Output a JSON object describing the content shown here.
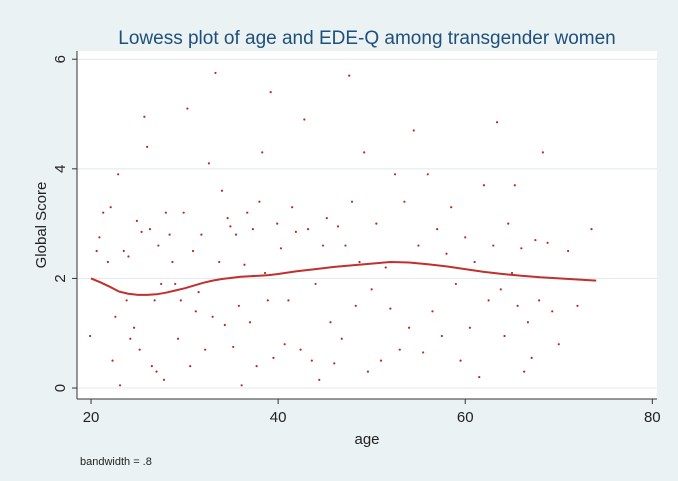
{
  "chart_data": {
    "type": "scatter",
    "title": "Lowess plot of age and EDE-Q among transgender women",
    "xlabel": "age",
    "ylabel": "Global Score",
    "xlim": [
      18.5,
      80.5
    ],
    "ylim": [
      -0.2,
      6.15
    ],
    "xticks": [
      20,
      40,
      60,
      80
    ],
    "yticks": [
      0,
      2,
      4,
      6
    ],
    "x_tick_labels": [
      "20",
      "40",
      "60",
      "80"
    ],
    "y_tick_labels": [
      "0",
      "2",
      "4",
      "6"
    ],
    "grid": "horizontal",
    "footnote": "bandwidth = .8",
    "colors": {
      "points": "#b52b2b",
      "line": "#c0302e",
      "title": "#1f4f7a",
      "background": "#eaf2f3",
      "plot": "#ffffff"
    },
    "series": [
      {
        "type": "scatter",
        "points": [
          [
            19.9,
            0.95
          ],
          [
            20.6,
            2.5
          ],
          [
            20.9,
            2.75
          ],
          [
            21.3,
            3.2
          ],
          [
            21.8,
            2.3
          ],
          [
            22.1,
            3.3
          ],
          [
            22.3,
            0.5
          ],
          [
            22.6,
            1.3
          ],
          [
            22.9,
            3.9
          ],
          [
            23.1,
            0.05
          ],
          [
            23.5,
            2.5
          ],
          [
            23.8,
            1.6
          ],
          [
            24.0,
            2.4
          ],
          [
            24.2,
            0.9
          ],
          [
            24.6,
            1.1
          ],
          [
            24.9,
            3.05
          ],
          [
            25.2,
            0.7
          ],
          [
            25.4,
            2.85
          ],
          [
            25.7,
            4.95
          ],
          [
            26.0,
            4.4
          ],
          [
            26.3,
            2.9
          ],
          [
            26.5,
            0.4
          ],
          [
            26.8,
            1.6
          ],
          [
            27.0,
            0.3
          ],
          [
            27.2,
            2.6
          ],
          [
            27.5,
            1.9
          ],
          [
            27.8,
            0.15
          ],
          [
            28.0,
            3.2
          ],
          [
            28.4,
            2.8
          ],
          [
            28.7,
            2.3
          ],
          [
            29.0,
            1.9
          ],
          [
            29.3,
            0.9
          ],
          [
            29.6,
            1.6
          ],
          [
            29.9,
            3.2
          ],
          [
            30.3,
            5.1
          ],
          [
            30.6,
            0.4
          ],
          [
            30.9,
            2.5
          ],
          [
            31.2,
            1.4
          ],
          [
            31.5,
            1.75
          ],
          [
            31.8,
            2.8
          ],
          [
            32.2,
            0.7
          ],
          [
            32.6,
            4.1
          ],
          [
            33.0,
            1.3
          ],
          [
            33.3,
            5.75
          ],
          [
            33.7,
            2.3
          ],
          [
            34.0,
            3.6
          ],
          [
            34.3,
            1.15
          ],
          [
            34.6,
            3.1
          ],
          [
            34.9,
            2.95
          ],
          [
            35.2,
            0.75
          ],
          [
            35.5,
            2.8
          ],
          [
            35.8,
            1.5
          ],
          [
            36.1,
            0.05
          ],
          [
            36.4,
            2.25
          ],
          [
            36.7,
            3.2
          ],
          [
            37.0,
            1.2
          ],
          [
            37.3,
            2.9
          ],
          [
            37.7,
            0.4
          ],
          [
            38.0,
            3.4
          ],
          [
            38.3,
            4.3
          ],
          [
            38.6,
            2.1
          ],
          [
            38.9,
            1.6
          ],
          [
            39.2,
            5.4
          ],
          [
            39.5,
            0.55
          ],
          [
            39.9,
            3.0
          ],
          [
            40.3,
            2.55
          ],
          [
            40.7,
            0.8
          ],
          [
            41.1,
            1.6
          ],
          [
            41.5,
            3.3
          ],
          [
            41.9,
            2.85
          ],
          [
            42.4,
            0.7
          ],
          [
            42.8,
            4.9
          ],
          [
            43.2,
            2.9
          ],
          [
            43.6,
            0.5
          ],
          [
            44.0,
            1.9
          ],
          [
            44.4,
            0.15
          ],
          [
            44.8,
            2.6
          ],
          [
            45.2,
            3.1
          ],
          [
            45.6,
            1.2
          ],
          [
            46.0,
            0.45
          ],
          [
            46.4,
            2.95
          ],
          [
            46.8,
            0.9
          ],
          [
            47.2,
            2.6
          ],
          [
            47.6,
            5.7
          ],
          [
            47.9,
            3.4
          ],
          [
            48.3,
            1.5
          ],
          [
            48.7,
            2.3
          ],
          [
            49.2,
            4.3
          ],
          [
            49.6,
            0.3
          ],
          [
            50.0,
            1.8
          ],
          [
            50.5,
            3.0
          ],
          [
            51.0,
            0.5
          ],
          [
            51.5,
            2.2
          ],
          [
            52.0,
            1.45
          ],
          [
            52.5,
            3.9
          ],
          [
            53.0,
            0.7
          ],
          [
            53.5,
            3.4
          ],
          [
            54.0,
            1.1
          ],
          [
            54.5,
            4.7
          ],
          [
            55.0,
            2.6
          ],
          [
            55.5,
            0.65
          ],
          [
            56.0,
            3.9
          ],
          [
            56.5,
            1.4
          ],
          [
            57.0,
            2.9
          ],
          [
            57.5,
            0.95
          ],
          [
            58.0,
            2.45
          ],
          [
            58.5,
            3.3
          ],
          [
            59.0,
            1.9
          ],
          [
            59.5,
            0.5
          ],
          [
            60.0,
            2.75
          ],
          [
            60.5,
            1.1
          ],
          [
            61.0,
            2.3
          ],
          [
            61.5,
            0.2
          ],
          [
            62.0,
            3.7
          ],
          [
            62.5,
            1.6
          ],
          [
            63.0,
            2.6
          ],
          [
            63.4,
            4.85
          ],
          [
            63.8,
            1.8
          ],
          [
            64.2,
            0.95
          ],
          [
            64.6,
            3.0
          ],
          [
            65.0,
            2.1
          ],
          [
            65.3,
            3.7
          ],
          [
            65.6,
            1.5
          ],
          [
            66.0,
            2.55
          ],
          [
            66.3,
            0.3
          ],
          [
            66.7,
            1.2
          ],
          [
            67.1,
            0.55
          ],
          [
            67.5,
            2.7
          ],
          [
            67.9,
            1.6
          ],
          [
            68.3,
            4.3
          ],
          [
            68.8,
            2.65
          ],
          [
            69.3,
            1.4
          ],
          [
            70.0,
            0.8
          ],
          [
            71.0,
            2.5
          ],
          [
            72.0,
            1.5
          ],
          [
            73.5,
            2.9
          ]
        ]
      },
      {
        "type": "line",
        "points": [
          [
            20,
            2.0
          ],
          [
            21,
            1.93
          ],
          [
            22,
            1.85
          ],
          [
            23,
            1.76
          ],
          [
            24,
            1.72
          ],
          [
            25,
            1.7
          ],
          [
            26,
            1.7
          ],
          [
            27,
            1.71
          ],
          [
            28,
            1.74
          ],
          [
            29,
            1.78
          ],
          [
            30,
            1.82
          ],
          [
            31,
            1.87
          ],
          [
            32,
            1.92
          ],
          [
            33,
            1.96
          ],
          [
            34,
            1.99
          ],
          [
            35,
            2.01
          ],
          [
            36,
            2.03
          ],
          [
            37,
            2.04
          ],
          [
            38,
            2.05
          ],
          [
            39,
            2.06
          ],
          [
            40,
            2.08
          ],
          [
            42,
            2.13
          ],
          [
            44,
            2.17
          ],
          [
            46,
            2.21
          ],
          [
            48,
            2.24
          ],
          [
            50,
            2.27
          ],
          [
            52,
            2.3
          ],
          [
            54,
            2.29
          ],
          [
            56,
            2.26
          ],
          [
            58,
            2.22
          ],
          [
            60,
            2.17
          ],
          [
            62,
            2.12
          ],
          [
            64,
            2.08
          ],
          [
            66,
            2.05
          ],
          [
            68,
            2.02
          ],
          [
            70,
            2.0
          ],
          [
            72,
            1.98
          ],
          [
            74,
            1.96
          ]
        ]
      }
    ]
  }
}
